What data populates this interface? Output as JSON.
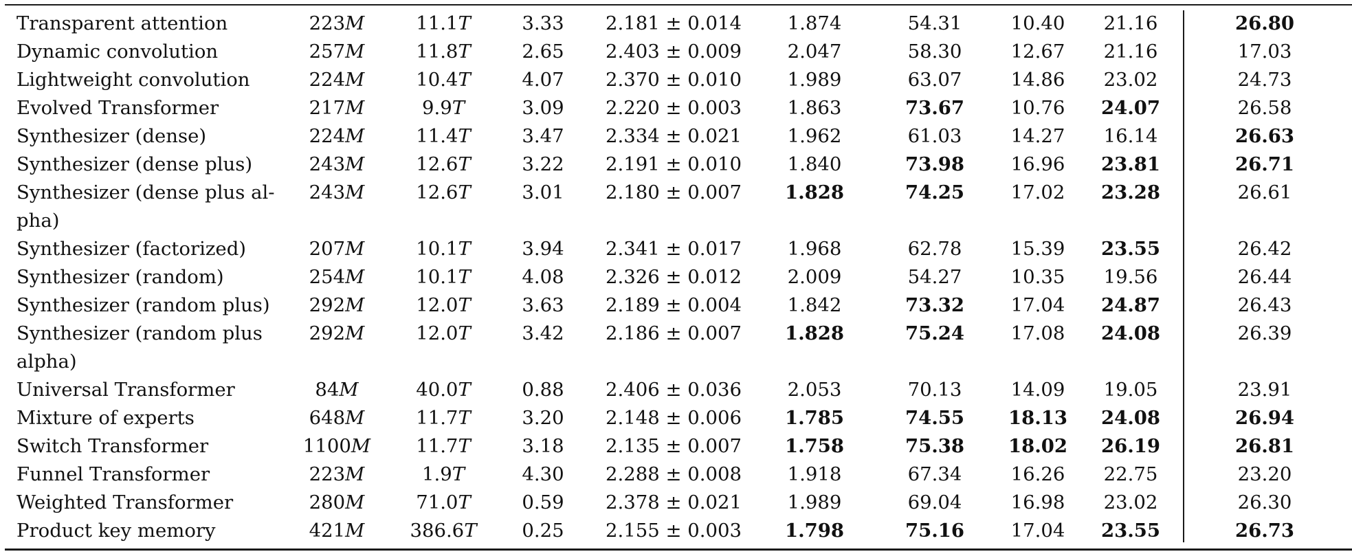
{
  "table": {
    "rows": [
      {
        "name_lines": [
          "Transparent attention"
        ],
        "params": "223",
        "params_unit": "M",
        "ops": "11.1",
        "ops_unit": "T",
        "steps": "3.33",
        "perplexity": "2.181 ± 0.014",
        "loss": "1.874",
        "sglue": "54.31",
        "xsum": "10.40",
        "webq": "21.16",
        "wmt": "26.80"
      },
      {
        "name_lines": [
          "Dynamic convolution"
        ],
        "params": "257",
        "params_unit": "M",
        "ops": "11.8",
        "ops_unit": "T",
        "steps": "2.65",
        "perplexity": "2.403 ± 0.009",
        "loss": "2.047",
        "sglue": "58.30",
        "xsum": "12.67",
        "webq": "21.16",
        "wmt": "17.03"
      },
      {
        "name_lines": [
          "Lightweight convolution"
        ],
        "params": "224",
        "params_unit": "M",
        "ops": "10.4",
        "ops_unit": "T",
        "steps": "4.07",
        "perplexity": "2.370 ± 0.010",
        "loss": "1.989",
        "sglue": "63.07",
        "xsum": "14.86",
        "webq": "23.02",
        "wmt": "24.73"
      },
      {
        "name_lines": [
          "Evolved Transformer"
        ],
        "params": "217",
        "params_unit": "M",
        "ops": "9.9",
        "ops_unit": "T",
        "steps": "3.09",
        "perplexity": "2.220 ± 0.003",
        "loss": "1.863",
        "sglue": "73.67",
        "xsum": "10.76",
        "webq": "24.07",
        "wmt": "26.58"
      },
      {
        "name_lines": [
          "Synthesizer (dense)"
        ],
        "params": "224",
        "params_unit": "M",
        "ops": "11.4",
        "ops_unit": "T",
        "steps": "3.47",
        "perplexity": "2.334 ± 0.021",
        "loss": "1.962",
        "sglue": "61.03",
        "xsum": "14.27",
        "webq": "16.14",
        "wmt": "26.63"
      },
      {
        "name_lines": [
          "Synthesizer (dense plus)"
        ],
        "params": "243",
        "params_unit": "M",
        "ops": "12.6",
        "ops_unit": "T",
        "steps": "3.22",
        "perplexity": "2.191 ± 0.010",
        "loss": "1.840",
        "sglue": "73.98",
        "xsum": "16.96",
        "webq": "23.81",
        "wmt": "26.71"
      },
      {
        "name_lines": [
          "Synthesizer (dense plus al-",
          "pha)"
        ],
        "params": "243",
        "params_unit": "M",
        "ops": "12.6",
        "ops_unit": "T",
        "steps": "3.01",
        "perplexity": "2.180 ± 0.007",
        "loss": "1.828",
        "sglue": "74.25",
        "xsum": "17.02",
        "webq": "23.28",
        "wmt": "26.61"
      },
      {
        "name_lines": [
          "Synthesizer (factorized)"
        ],
        "params": "207",
        "params_unit": "M",
        "ops": "10.1",
        "ops_unit": "T",
        "steps": "3.94",
        "perplexity": "2.341 ± 0.017",
        "loss": "1.968",
        "sglue": "62.78",
        "xsum": "15.39",
        "webq": "23.55",
        "wmt": "26.42"
      },
      {
        "name_lines": [
          "Synthesizer (random)"
        ],
        "params": "254",
        "params_unit": "M",
        "ops": "10.1",
        "ops_unit": "T",
        "steps": "4.08",
        "perplexity": "2.326 ± 0.012",
        "loss": "2.009",
        "sglue": "54.27",
        "xsum": "10.35",
        "webq": "19.56",
        "wmt": "26.44"
      },
      {
        "name_lines": [
          "Synthesizer (random plus)"
        ],
        "params": "292",
        "params_unit": "M",
        "ops": "12.0",
        "ops_unit": "T",
        "steps": "3.63",
        "perplexity": "2.189 ± 0.004",
        "loss": "1.842",
        "sglue": "73.32",
        "xsum": "17.04",
        "webq": "24.87",
        "wmt": "26.43"
      },
      {
        "name_lines": [
          "Synthesizer (random plus",
          "alpha)"
        ],
        "params": "292",
        "params_unit": "M",
        "ops": "12.0",
        "ops_unit": "T",
        "steps": "3.42",
        "perplexity": "2.186 ± 0.007",
        "loss": "1.828",
        "sglue": "75.24",
        "xsum": "17.08",
        "webq": "24.08",
        "wmt": "26.39"
      },
      {
        "name_lines": [
          "Universal Transformer"
        ],
        "params": "84",
        "params_unit": "M",
        "ops": "40.0",
        "ops_unit": "T",
        "steps": "0.88",
        "perplexity": "2.406 ± 0.036",
        "loss": "2.053",
        "sglue": "70.13",
        "xsum": "14.09",
        "webq": "19.05",
        "wmt": "23.91"
      },
      {
        "name_lines": [
          "Mixture of experts"
        ],
        "params": "648",
        "params_unit": "M",
        "ops": "11.7",
        "ops_unit": "T",
        "steps": "3.20",
        "perplexity": "2.148 ± 0.006",
        "loss": "1.785",
        "sglue": "74.55",
        "xsum": "18.13",
        "webq": "24.08",
        "wmt": "26.94"
      },
      {
        "name_lines": [
          "Switch Transformer"
        ],
        "params": "1100",
        "params_unit": "M",
        "ops": "11.7",
        "ops_unit": "T",
        "steps": "3.18",
        "perplexity": "2.135 ± 0.007",
        "loss": "1.758",
        "sglue": "75.38",
        "xsum": "18.02",
        "webq": "26.19",
        "wmt": "26.81"
      },
      {
        "name_lines": [
          "Funnel Transformer"
        ],
        "params": "223",
        "params_unit": "M",
        "ops": "1.9",
        "ops_unit": "T",
        "steps": "4.30",
        "perplexity": "2.288 ± 0.008",
        "loss": "1.918",
        "sglue": "67.34",
        "xsum": "16.26",
        "webq": "22.75",
        "wmt": "23.20"
      },
      {
        "name_lines": [
          "Weighted Transformer"
        ],
        "params": "280",
        "params_unit": "M",
        "ops": "71.0",
        "ops_unit": "T",
        "steps": "0.59",
        "perplexity": "2.378 ± 0.021",
        "loss": "1.989",
        "sglue": "69.04",
        "xsum": "16.98",
        "webq": "23.02",
        "wmt": "26.30"
      },
      {
        "name_lines": [
          "Product key memory"
        ],
        "params": "421",
        "params_unit": "M",
        "ops": "386.6",
        "ops_unit": "T",
        "steps": "0.25",
        "perplexity": "2.155 ± 0.003",
        "loss": "1.798",
        "sglue": "75.16",
        "xsum": "17.04",
        "webq": "23.55",
        "wmt": "26.73"
      }
    ],
    "bold_cells": {
      "loss": [
        "Synthesizer (dense plus alpha)",
        "Synthesizer (random plus alpha)",
        "Mixture of experts",
        "Switch Transformer",
        "Product key memory"
      ],
      "sglue": [
        "Evolved Transformer",
        "Synthesizer (dense plus)",
        "Synthesizer (dense plus alpha)",
        "Synthesizer (random plus)",
        "Synthesizer (random plus alpha)",
        "Mixture of experts",
        "Switch Transformer",
        "Product key memory"
      ],
      "xsum": [
        "Mixture of experts",
        "Switch Transformer"
      ],
      "webq": [
        "Evolved Transformer",
        "Synthesizer (dense plus)",
        "Synthesizer (dense plus alpha)",
        "Synthesizer (factorized)",
        "Synthesizer (random plus)",
        "Synthesizer (random plus alpha)",
        "Mixture of experts",
        "Switch Transformer",
        "Product key memory"
      ],
      "wmt": [
        "Transparent attention",
        "Synthesizer (dense)",
        "Synthesizer (dense plus)",
        "Mixture of experts",
        "Switch Transformer",
        "Product key memory"
      ]
    }
  }
}
